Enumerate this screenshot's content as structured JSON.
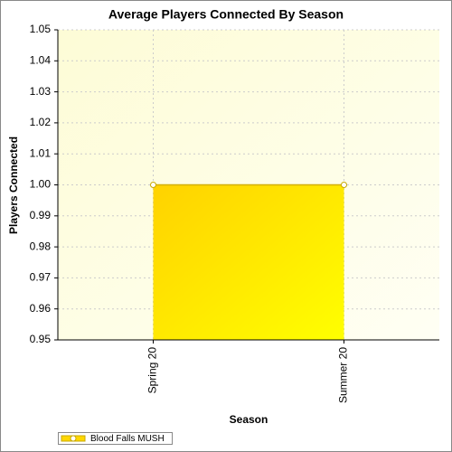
{
  "chart_data": {
    "type": "area",
    "title": "Average Players Connected By Season",
    "x_label": "Season",
    "y_label": "Players Connected",
    "categories": [
      "Spring 20",
      "Summer 20"
    ],
    "series": [
      {
        "name": "Blood Falls MUSH",
        "color": "#ffd700",
        "values": [
          1,
          1
        ]
      }
    ],
    "ylim": [
      0.95,
      1.05
    ],
    "yticks": [
      0.95,
      0.96,
      0.97,
      0.98,
      0.99,
      {
        "value": 1,
        "label": "1.00"
      },
      1.01,
      1.02,
      1.03,
      1.04,
      1.05
    ],
    "grid": true,
    "legend": "bottom-left"
  }
}
